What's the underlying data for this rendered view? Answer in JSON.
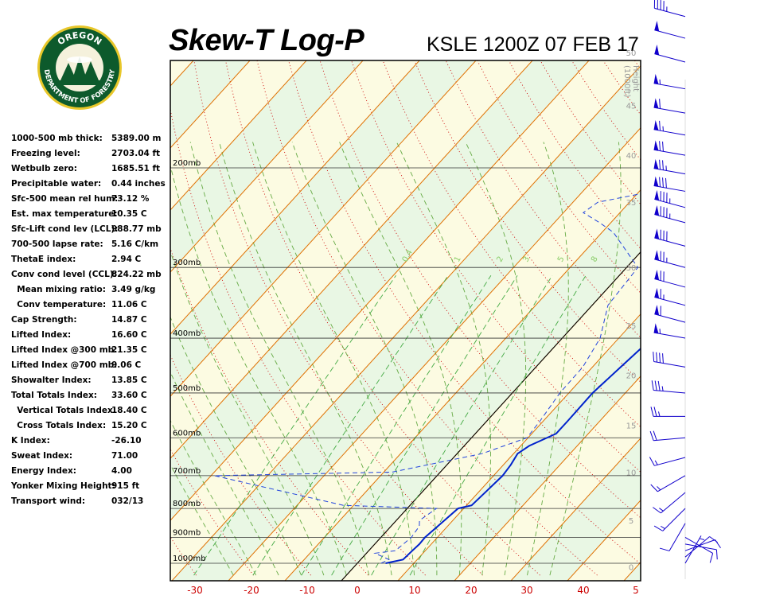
{
  "header": {
    "title": "Skew-T Log-P",
    "station": "KSLE 1200Z 07 FEB 17"
  },
  "logo": {
    "text_top": "OREGON",
    "text_bottom": "DEPARTMENT OF FORESTRY"
  },
  "indices": [
    {
      "label": "1000-500 mb thick:",
      "value": "5389.00 m"
    },
    {
      "label": "Freezing level:",
      "value": "2703.04 ft"
    },
    {
      "label": "Wetbulb zero:",
      "value": "1685.51 ft"
    },
    {
      "label": "Precipitable water:",
      "value": "0.44 inches"
    },
    {
      "label": "Sfc-500 mean rel hum:",
      "value": "73.12 %"
    },
    {
      "label": "Est. max temperature:",
      "value": "10.35 C"
    },
    {
      "label": "Sfc-Lift cond lev (LCL):",
      "value": "988.77 mb"
    },
    {
      "label": "700-500 lapse rate:",
      "value": "5.16 C/km"
    },
    {
      "label": "ThetaE index:",
      "value": "2.94 C"
    },
    {
      "label": "Conv cond level (CCL):",
      "value": "824.22 mb"
    },
    {
      "label": "  Mean mixing ratio:",
      "value": "3.49 g/kg"
    },
    {
      "label": "  Conv temperature:",
      "value": "11.06 C"
    },
    {
      "label": "Cap Strength:",
      "value": "14.87 C"
    },
    {
      "label": "Lifted Index:",
      "value": "16.60 C"
    },
    {
      "label": "Lifted Index @300 mb:",
      "value": "21.35 C"
    },
    {
      "label": "Lifted Index @700 mb:",
      "value": "9.06 C"
    },
    {
      "label": "Showalter Index:",
      "value": "13.85 C"
    },
    {
      "label": "Total Totals Index:",
      "value": "33.60 C"
    },
    {
      "label": "  Vertical Totals Index:",
      "value": "18.40 C"
    },
    {
      "label": "  Cross Totals Index:",
      "value": "15.20 C"
    },
    {
      "label": "K Index:",
      "value": "-26.10"
    },
    {
      "label": "Sweat Index:",
      "value": "71.00"
    },
    {
      "label": "Energy Index:",
      "value": "4.00"
    },
    {
      "label": "Yonker Mixing Height:",
      "value": "915 ft"
    },
    {
      "label": "Transport wind:",
      "value": "032/13"
    }
  ],
  "chart_data": {
    "type": "line",
    "title": "Skew-T Log-P",
    "xlabel": "",
    "ylabel": "",
    "temperature_ticks": [
      -30,
      -20,
      -10,
      0,
      10,
      20,
      30,
      40,
      5
    ],
    "pressure_levels": [
      {
        "p": 200,
        "label": "200mb"
      },
      {
        "p": 300,
        "label": "300mb"
      },
      {
        "p": 400,
        "label": "400mb"
      },
      {
        "p": 500,
        "label": "500mb"
      },
      {
        "p": 600,
        "label": "600mb"
      },
      {
        "p": 700,
        "label": "700mb"
      },
      {
        "p": 800,
        "label": "800mb"
      },
      {
        "p": 900,
        "label": "900mb"
      },
      {
        "p": 1000,
        "label": "1000mb"
      }
    ],
    "height_axis": {
      "label_lines": [
        "Height",
        "(1000ft)"
      ],
      "ticks": [
        {
          "label": "50",
          "p": 125
        },
        {
          "label": "45",
          "p": 155
        },
        {
          "label": "40",
          "p": 190
        },
        {
          "label": "35",
          "p": 230
        },
        {
          "label": "30",
          "p": 300
        },
        {
          "label": "25",
          "p": 380
        },
        {
          "label": "20",
          "p": 465
        },
        {
          "label": "15",
          "p": 570
        },
        {
          "label": "10",
          "p": 690
        },
        {
          "label": "5",
          "p": 840
        },
        {
          "label": "0",
          "p": 1015
        }
      ]
    },
    "mixing_ratio_labels": [
      "0.4",
      "1",
      "2",
      "3",
      "5",
      "8"
    ],
    "series": [
      {
        "name": "",
        "kind": "temperature",
        "points": [
          {
            "p": 1000,
            "t": 5.0
          },
          {
            "p": 985,
            "t": 7.5
          },
          {
            "p": 950,
            "t": 7.7
          },
          {
            "p": 925,
            "t": 7.9
          },
          {
            "p": 900,
            "t": 7.8
          },
          {
            "p": 850,
            "t": 8.4
          },
          {
            "p": 800,
            "t": 9.0
          },
          {
            "p": 790,
            "t": 10.9
          },
          {
            "p": 750,
            "t": 11.2
          },
          {
            "p": 700,
            "t": 11.6
          },
          {
            "p": 670,
            "t": 11.3
          },
          {
            "p": 640,
            "t": 10.7
          },
          {
            "p": 620,
            "t": 11.5
          },
          {
            "p": 590,
            "t": 14.3
          },
          {
            "p": 560,
            "t": 14.3
          },
          {
            "p": 500,
            "t": 14.2
          },
          {
            "p": 450,
            "t": 15.0
          },
          {
            "p": 400,
            "t": 15.9
          },
          {
            "p": 350,
            "t": 16.8
          },
          {
            "p": 300,
            "t": 17.0
          },
          {
            "p": 270,
            "t": 17.4
          },
          {
            "p": 250,
            "t": 20.0
          },
          {
            "p": 242,
            "t": 22.0
          },
          {
            "p": 230,
            "t": 24.4
          },
          {
            "p": 225,
            "t": 25.6
          },
          {
            "p": 210,
            "t": 34.0
          },
          {
            "p": 200,
            "t": 35.4
          },
          {
            "p": 195,
            "t": 37.0
          },
          {
            "p": 190,
            "t": 39.3
          },
          {
            "p": 175,
            "t": 50.6
          },
          {
            "p": 170,
            "t": 56.0
          }
        ]
      },
      {
        "name": "",
        "kind": "dewpoint",
        "points": [
          {
            "p": 1000,
            "t": 4.2
          },
          {
            "p": 985,
            "t": 5.0
          },
          {
            "p": 960,
            "t": 1.5
          },
          {
            "p": 950,
            "t": 4.7
          },
          {
            "p": 900,
            "t": 5.4
          },
          {
            "p": 860,
            "t": 5.0
          },
          {
            "p": 840,
            "t": 4.1
          },
          {
            "p": 800,
            "t": 5.2
          },
          {
            "p": 790,
            "t": -11.8
          },
          {
            "p": 700,
            "t": -39.4
          },
          {
            "p": 690,
            "t": -8.5
          },
          {
            "p": 640,
            "t": 4.4
          },
          {
            "p": 600,
            "t": 9.8
          },
          {
            "p": 560,
            "t": 9.4
          },
          {
            "p": 500,
            "t": 8.4
          },
          {
            "p": 450,
            "t": 8.3
          },
          {
            "p": 400,
            "t": 6.7
          },
          {
            "p": 350,
            "t": 2.8
          },
          {
            "p": 300,
            "t": 2.0
          },
          {
            "p": 260,
            "t": -8.0
          },
          {
            "p": 250,
            "t": -12.0
          },
          {
            "p": 240,
            "t": -16.5
          },
          {
            "p": 230,
            "t": -15.6
          },
          {
            "p": 220,
            "t": -7.5
          },
          {
            "p": 215,
            "t": -3.3
          },
          {
            "p": 205,
            "t": -4.4
          },
          {
            "p": 200,
            "t": -6.8
          },
          {
            "p": 198,
            "t": -10.3
          },
          {
            "p": 190,
            "t": -10.1
          },
          {
            "p": 185,
            "t": -8.8
          },
          {
            "p": 180,
            "t": -7.2
          },
          {
            "p": 175,
            "t": 4.8
          },
          {
            "p": 160,
            "t": 12.6
          },
          {
            "p": 150,
            "t": 19.7
          },
          {
            "p": 140,
            "t": 27.0
          }
        ]
      }
    ],
    "winds": [
      {
        "p": 1000,
        "dir": 30,
        "spd": 5
      },
      {
        "p": 975,
        "dir": 50,
        "spd": 10
      },
      {
        "p": 950,
        "dir": 70,
        "spd": 10
      },
      {
        "p": 925,
        "dir": 100,
        "spd": 10
      },
      {
        "p": 900,
        "dir": 120,
        "spd": 10
      },
      {
        "p": 850,
        "dir": 210,
        "spd": 10
      },
      {
        "p": 800,
        "dir": 225,
        "spd": 15
      },
      {
        "p": 750,
        "dir": 230,
        "spd": 15
      },
      {
        "p": 700,
        "dir": 240,
        "spd": 15
      },
      {
        "p": 650,
        "dir": 255,
        "spd": 15
      },
      {
        "p": 600,
        "dir": 265,
        "spd": 20
      },
      {
        "p": 550,
        "dir": 270,
        "spd": 25
      },
      {
        "p": 500,
        "dir": 275,
        "spd": 35
      },
      {
        "p": 450,
        "dir": 280,
        "spd": 40
      },
      {
        "p": 400,
        "dir": 280,
        "spd": 55
      },
      {
        "p": 375,
        "dir": 285,
        "spd": 60
      },
      {
        "p": 350,
        "dir": 285,
        "spd": 65
      },
      {
        "p": 325,
        "dir": 285,
        "spd": 70
      },
      {
        "p": 300,
        "dir": 285,
        "spd": 75
      },
      {
        "p": 275,
        "dir": 285,
        "spd": 80
      },
      {
        "p": 250,
        "dir": 285,
        "spd": 85
      },
      {
        "p": 235,
        "dir": 285,
        "spd": 85
      },
      {
        "p": 220,
        "dir": 280,
        "spd": 80
      },
      {
        "p": 205,
        "dir": 280,
        "spd": 75
      },
      {
        "p": 190,
        "dir": 280,
        "spd": 70
      },
      {
        "p": 175,
        "dir": 280,
        "spd": 65
      },
      {
        "p": 160,
        "dir": 280,
        "spd": 60
      },
      {
        "p": 145,
        "dir": 280,
        "spd": 55
      },
      {
        "p": 130,
        "dir": 285,
        "spd": 50
      },
      {
        "p": 118,
        "dir": 285,
        "spd": 50
      },
      {
        "p": 108,
        "dir": 285,
        "spd": 45
      }
    ],
    "colors": {
      "temperature": "#0022cc",
      "dewpoint": "#2244dd",
      "isotherm": "#e07000",
      "dry_adiabat": "#cc0000",
      "moist_adiabat": "#66aa44",
      "mixing_ratio": "#44aa44",
      "isobar": "#333333",
      "wind": "#1100cc",
      "band_green": "#e9f7e4",
      "band_yellow": "#fcfbe2"
    }
  }
}
